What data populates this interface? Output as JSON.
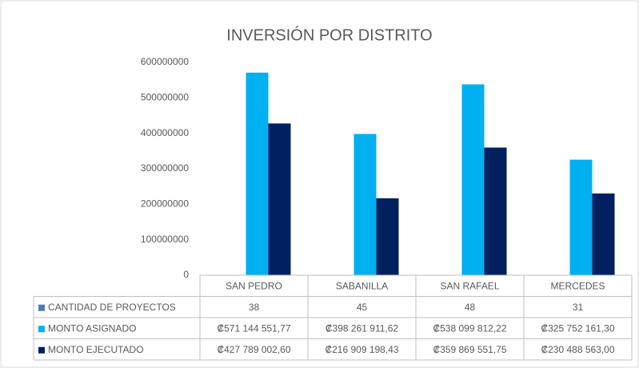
{
  "chart_data": {
    "type": "bar",
    "title": "INVERSIÓN POR DISTRITO",
    "categories": [
      "SAN PEDRO",
      "SABANILLA",
      "SAN RAFAEL",
      "MERCEDES"
    ],
    "series": [
      {
        "name": "CANTIDAD DE PROYECTOS",
        "color": "#4a7ebb",
        "values": [
          38,
          45,
          48,
          31
        ]
      },
      {
        "name": "MONTO ASIGNADO",
        "color": "#00b0f0",
        "values": [
          571144551.77,
          398261911.62,
          538099812.22,
          325752161.3
        ],
        "value_labels": [
          "₡571 144 551,77",
          "₡398 261 911,62",
          "₡538 099 812,22",
          "₡325 752 161,30"
        ]
      },
      {
        "name": "MONTO EJECUTADO",
        "color": "#002060",
        "values": [
          427789002.6,
          216909198.43,
          359869551.75,
          230488563.0
        ],
        "value_labels": [
          "₡427 789 002,60",
          "₡216 909 198,43",
          "₡359 869 551,75",
          "₡230 488 563,00"
        ]
      }
    ],
    "ylim": [
      0,
      600000000
    ],
    "yticks": [
      0,
      100000000,
      200000000,
      300000000,
      400000000,
      500000000,
      600000000
    ],
    "grid": false
  }
}
